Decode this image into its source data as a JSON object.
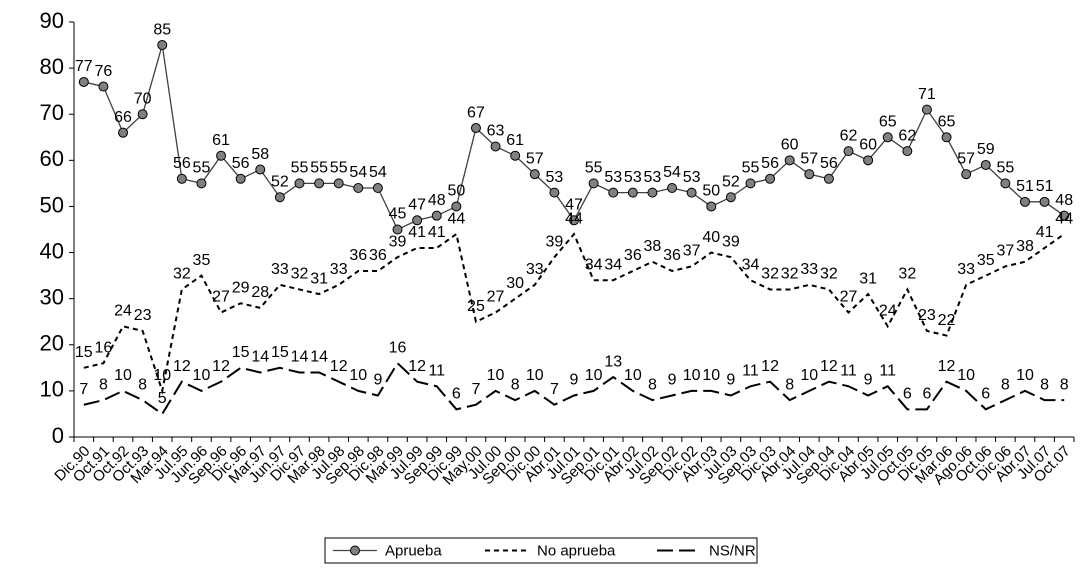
{
  "chart_data": {
    "type": "line",
    "categories": [
      "Dic.90",
      "Oct.91",
      "Oct.92",
      "Oct.93",
      "Mar.94",
      "Jul.95",
      "Jun.96",
      "Sep.96",
      "Dic.96",
      "Mar.97",
      "Jun.97",
      "Dic.97",
      "Mar.98",
      "Jul.98",
      "Sep.98",
      "Dic.98",
      "Mar.99",
      "Jul.99",
      "Sep.99",
      "Dic.99",
      "May.00",
      "Jul.00",
      "Sep.00",
      "Dic.00",
      "Abr.01",
      "Jul.01",
      "Sep.01",
      "Dic.01",
      "Abr.02",
      "Jul.02",
      "Sep.02",
      "Dic.02",
      "Abr.03",
      "Jul.03",
      "Sep.03",
      "Dic.03",
      "Abr.04",
      "Jul.04",
      "Sep.04",
      "Dic.04",
      "Abr.05",
      "Jul.05",
      "Oct.05",
      "Dic.05",
      "Mar.06",
      "Ago.06",
      "Oct.06",
      "Dic.06",
      "Abr.07",
      "Jul.07",
      "Oct.07"
    ],
    "series": [
      {
        "name": "Aprueba",
        "color": "#808080",
        "values": [
          77,
          76,
          66,
          70,
          85,
          56,
          55,
          61,
          56,
          58,
          52,
          55,
          55,
          55,
          54,
          54,
          45,
          47,
          48,
          50,
          67,
          63,
          61,
          57,
          53,
          47,
          55,
          53,
          53,
          53,
          54,
          53,
          50,
          52,
          55,
          56,
          60,
          57,
          56,
          62,
          60,
          65,
          62,
          71,
          65,
          57,
          59,
          55,
          51,
          51,
          48
        ]
      },
      {
        "name": "No aprueba",
        "color": "#000000",
        "values": [
          15,
          16,
          24,
          23,
          10,
          32,
          35,
          27,
          29,
          28,
          33,
          32,
          31,
          33,
          36,
          36,
          39,
          41,
          41,
          44,
          25,
          27,
          30,
          33,
          39,
          44,
          34,
          34,
          36,
          38,
          36,
          37,
          40,
          39,
          34,
          32,
          32,
          33,
          32,
          27,
          31,
          24,
          32,
          23,
          22,
          33,
          35,
          37,
          38,
          41,
          44
        ]
      },
      {
        "name": "NS/NR",
        "color": "#000000",
        "values": [
          7,
          8,
          10,
          8,
          5,
          12,
          10,
          12,
          15,
          14,
          15,
          14,
          14,
          12,
          10,
          9,
          16,
          12,
          11,
          6,
          7,
          10,
          8,
          10,
          7,
          9,
          10,
          13,
          10,
          8,
          9,
          10,
          10,
          9,
          11,
          12,
          8,
          10,
          12,
          11,
          9,
          11,
          6,
          6,
          12,
          10,
          6,
          8,
          10,
          8,
          8
        ]
      }
    ],
    "ylim": [
      0,
      90
    ],
    "yticks": [
      0,
      10,
      20,
      30,
      40,
      50,
      60,
      70,
      80,
      90
    ],
    "grid": false,
    "legend": "bottom"
  }
}
